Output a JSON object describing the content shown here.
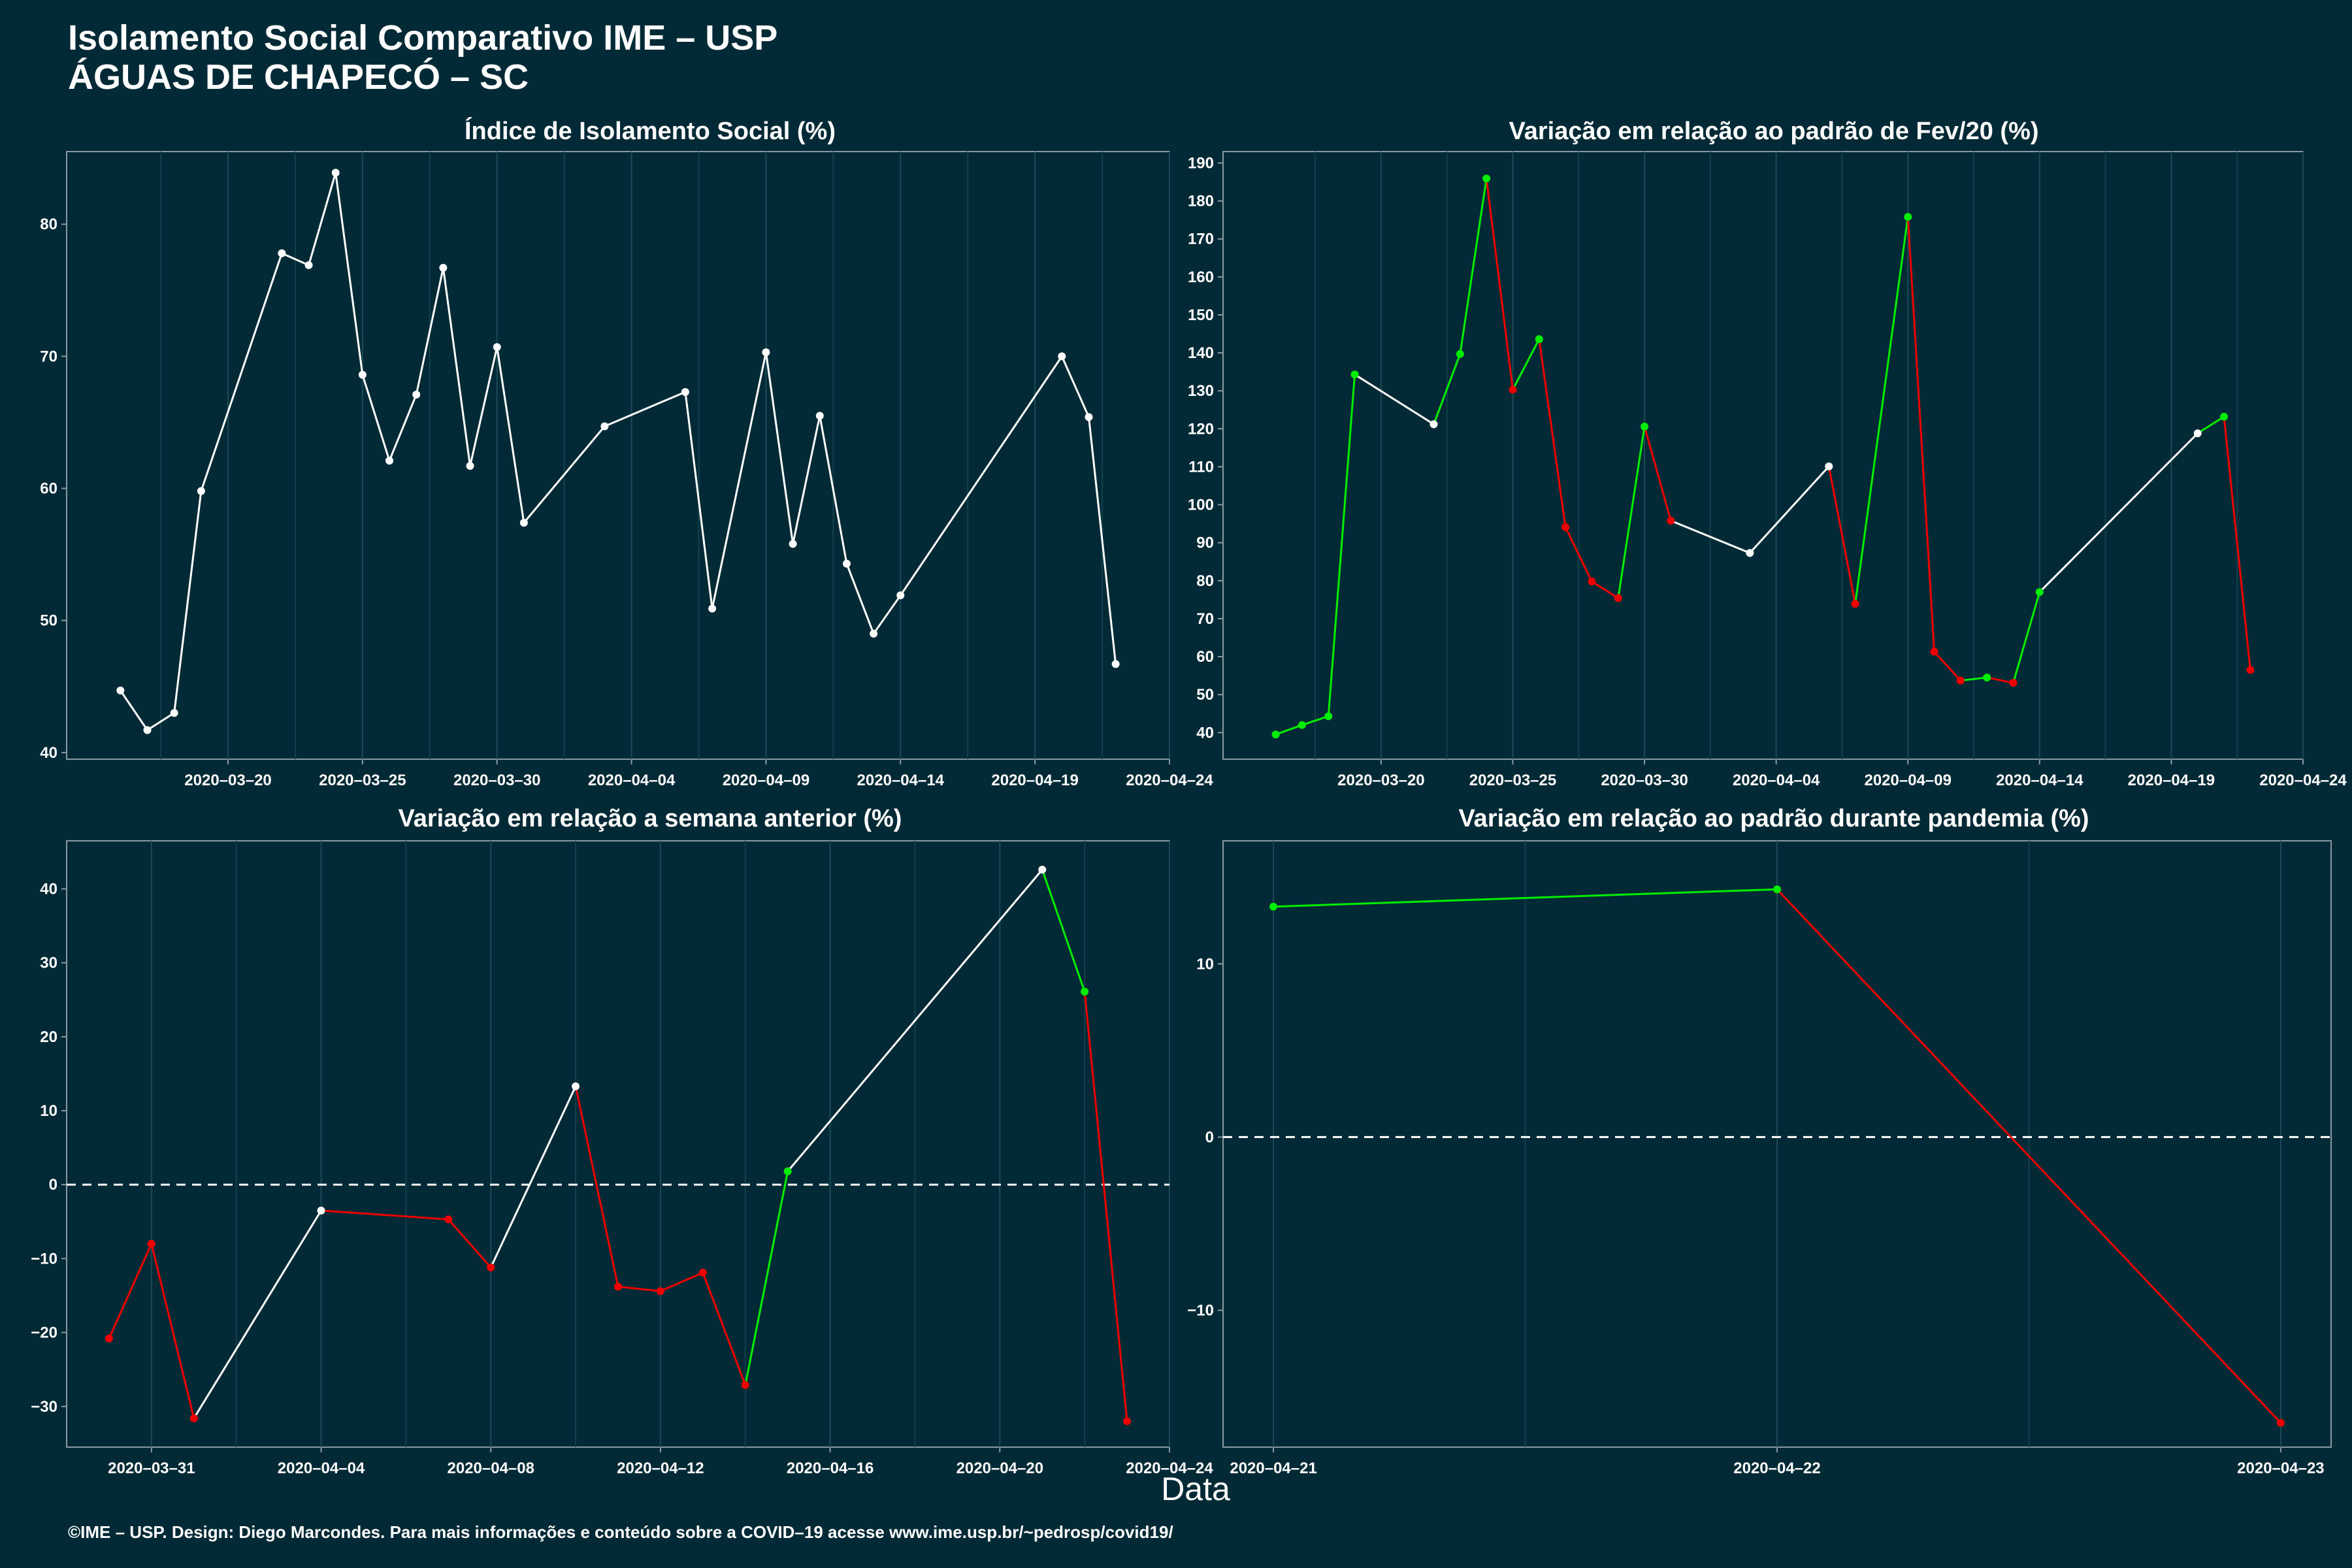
{
  "header": {
    "title": "Isolamento Social Comparativo IME – USP",
    "subtitle": "ÁGUAS DE CHAPECÓ – SC"
  },
  "xlabel": "Data",
  "caption": "©IME – USP. Design: Diego Marcondes. Para mais informações e conteúdo sobre a COVID–19 acesse www.ime.usp.br/~pedrosp/covid19/",
  "colors": {
    "background": "#022a36",
    "neutral": "#ffffff",
    "increase": "#00ee00",
    "decrease": "#ee0000"
  },
  "chart_data": [
    {
      "type": "line",
      "title": "Índice de Isolamento Social (%)",
      "date_start": "2020-03-14",
      "x_ticks": [
        "2020–03–20",
        "2020–03–25",
        "2020–03–30",
        "2020–04–04",
        "2020–04–09",
        "2020–04–14",
        "2020–04–19",
        "2020–04–24"
      ],
      "y_ticks": [
        40,
        50,
        60,
        70,
        80
      ],
      "ylim": [
        39.5,
        85.5
      ],
      "xlim": [
        "2020-03-14",
        "2020-04-24"
      ],
      "points": [
        [
          "2020-03-16",
          44.7
        ],
        [
          "2020-03-17",
          41.7
        ],
        [
          "2020-03-18",
          43.0
        ],
        [
          "2020-03-19",
          59.8
        ],
        [
          "2020-03-22",
          77.8
        ],
        [
          "2020-03-23",
          76.9
        ],
        [
          "2020-03-24",
          83.9
        ],
        [
          "2020-03-25",
          68.6
        ],
        [
          "2020-03-26",
          62.1
        ],
        [
          "2020-03-27",
          67.1
        ],
        [
          "2020-03-28",
          76.7
        ],
        [
          "2020-03-29",
          61.7
        ],
        [
          "2020-03-30",
          70.7
        ],
        [
          "2020-03-31",
          57.4
        ],
        [
          "2020-04-03",
          64.7
        ],
        [
          "2020-04-06",
          67.3
        ],
        [
          "2020-04-07",
          50.9
        ],
        [
          "2020-04-09",
          70.3
        ],
        [
          "2020-04-10",
          55.8
        ],
        [
          "2020-04-11",
          65.5
        ],
        [
          "2020-04-12",
          54.3
        ],
        [
          "2020-04-13",
          49.0
        ],
        [
          "2020-04-14",
          51.9
        ],
        [
          "2020-04-20",
          70.0
        ],
        [
          "2020-04-21",
          65.4
        ],
        [
          "2020-04-22",
          46.7
        ]
      ],
      "segment_colors": "neutral"
    },
    {
      "type": "line",
      "title": "Variação em relação ao padrão de Fev/20 (%)",
      "x_ticks": [
        "2020–03–20",
        "2020–03–25",
        "2020–03–30",
        "2020–04–04",
        "2020–04–09",
        "2020–04–14",
        "2020–04–19",
        "2020–04–24"
      ],
      "y_ticks": [
        40,
        50,
        60,
        70,
        80,
        90,
        100,
        110,
        120,
        130,
        140,
        150,
        160,
        170,
        180,
        190
      ],
      "ylim": [
        33,
        193
      ],
      "xlim": [
        "2020-03-14",
        "2020-04-24"
      ],
      "points": [
        [
          "2020-03-16",
          39.5
        ],
        [
          "2020-03-17",
          42.0
        ],
        [
          "2020-03-18",
          44.3
        ],
        [
          "2020-03-19",
          134.3
        ],
        [
          "2020-03-22",
          121.2
        ],
        [
          "2020-03-23",
          139.7
        ],
        [
          "2020-03-24",
          185.9
        ],
        [
          "2020-03-25",
          130.3
        ],
        [
          "2020-03-26",
          143.6
        ],
        [
          "2020-03-27",
          94.1
        ],
        [
          "2020-03-28",
          79.8
        ],
        [
          "2020-03-29",
          75.4
        ],
        [
          "2020-03-30",
          120.6
        ],
        [
          "2020-03-31",
          95.8
        ],
        [
          "2020-04-03",
          87.3
        ],
        [
          "2020-04-06",
          110.1
        ],
        [
          "2020-04-07",
          73.9
        ],
        [
          "2020-04-09",
          175.8
        ],
        [
          "2020-04-10",
          61.3
        ],
        [
          "2020-04-11",
          53.7
        ],
        [
          "2020-04-12",
          54.5
        ],
        [
          "2020-04-13",
          53.1
        ],
        [
          "2020-04-14",
          77.0
        ],
        [
          "2020-04-20",
          118.8
        ],
        [
          "2020-04-21",
          123.2
        ],
        [
          "2020-04-22",
          56.5
        ]
      ],
      "segment_colors": [
        "increase",
        "increase",
        "increase",
        "neutral",
        "increase",
        "increase",
        "decrease",
        "increase",
        "decrease",
        "decrease",
        "decrease",
        "increase",
        "decrease",
        "neutral",
        "neutral",
        "decrease",
        "increase",
        "decrease",
        "decrease",
        "increase",
        "decrease",
        "increase",
        "neutral",
        "increase",
        "decrease"
      ]
    },
    {
      "type": "line",
      "title": "Variação em relação a semana anterior (%)",
      "x_ticks": [
        "2020–03–31",
        "2020–04–04",
        "2020–04–08",
        "2020–04–12",
        "2020–04–16",
        "2020–04–20",
        "2020–04–24"
      ],
      "y_ticks": [
        -30,
        -20,
        -10,
        0,
        10,
        20,
        30,
        40
      ],
      "ylim": [
        -35.5,
        46.5
      ],
      "xlim": [
        "2020-03-29",
        "2020-04-24"
      ],
      "zero_line": true,
      "points": [
        [
          "2020-03-30",
          -20.8
        ],
        [
          "2020-03-31",
          -8.0
        ],
        [
          "2020-04-01",
          -31.6
        ],
        [
          "2020-04-04",
          -3.5
        ],
        [
          "2020-04-07",
          -4.7
        ],
        [
          "2020-04-08",
          -11.2
        ],
        [
          "2020-04-10",
          13.3
        ],
        [
          "2020-04-11",
          -13.8
        ],
        [
          "2020-04-12",
          -14.4
        ],
        [
          "2020-04-13",
          -11.9
        ],
        [
          "2020-04-14",
          -27.1
        ],
        [
          "2020-04-15",
          1.8
        ],
        [
          "2020-04-21",
          42.6
        ],
        [
          "2020-04-22",
          26.1
        ],
        [
          "2020-04-23",
          -32.0
        ]
      ],
      "segment_colors": [
        "decrease",
        "decrease",
        "neutral",
        "decrease",
        "decrease",
        "neutral",
        "decrease",
        "decrease",
        "decrease",
        "decrease",
        "increase",
        "neutral",
        "increase",
        "decrease"
      ]
    },
    {
      "type": "line",
      "title": "Variação em relação ao padrão durante pandemia (%)",
      "x_ticks": [
        "2020–04–21",
        "2020–04–22",
        "2020–04–23"
      ],
      "y_ticks": [
        -10,
        0,
        10
      ],
      "ylim": [
        -17.9,
        17.1
      ],
      "xlim": [
        "2020-04-20.9",
        "2020-04-23.1"
      ],
      "zero_line": true,
      "points": [
        [
          "2020-04-21",
          13.3
        ],
        [
          "2020-04-22",
          14.3
        ],
        [
          "2020-04-23",
          -16.5
        ]
      ],
      "segment_colors": [
        "increase",
        "decrease"
      ]
    }
  ]
}
